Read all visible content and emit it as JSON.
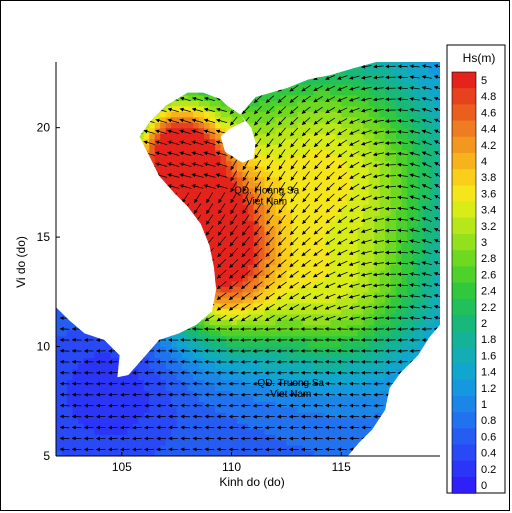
{
  "chart_data": {
    "type": "heatmap",
    "subtype": "filled-contour map with vector arrows",
    "xlabel": "Kinh do (do)",
    "ylabel": "Vi do (do)",
    "xlim": [
      102,
      119.5
    ],
    "ylim": [
      5,
      23
    ],
    "x_ticks": [
      "105",
      "110",
      "115"
    ],
    "y_ticks": [
      "5",
      "10",
      "15",
      "20"
    ],
    "x_tick_values": [
      105,
      110,
      115
    ],
    "y_tick_values": [
      5,
      10,
      15,
      20
    ],
    "grid": false,
    "legend": {
      "title": "Hs(m)",
      "placement": "right",
      "labels": [
        "5",
        "4.8",
        "4.6",
        "4.4",
        "4.2",
        "4",
        "3.8",
        "3.6",
        "3.4",
        "3.2",
        "3",
        "2.8",
        "2.6",
        "2.4",
        "2.2",
        "2",
        "1.8",
        "1.6",
        "1.4",
        "1.2",
        "1",
        "0.8",
        "0.6",
        "0.4",
        "0.2",
        "0"
      ],
      "values": [
        5,
        4.8,
        4.6,
        4.4,
        4.2,
        4,
        3.8,
        3.6,
        3.4,
        3.2,
        3,
        2.8,
        2.6,
        2.4,
        2.2,
        2,
        1.8,
        1.6,
        1.4,
        1.2,
        1,
        0.8,
        0.6,
        0.4,
        0.2,
        0
      ],
      "colors": [
        "#e3231c",
        "#e6421d",
        "#eb5f1e",
        "#ef7c21",
        "#f3981f",
        "#f6b31c",
        "#f9cf19",
        "#f4e61a",
        "#d8ec18",
        "#b7e61a",
        "#93e01c",
        "#6fd921",
        "#4ed12a",
        "#32c83d",
        "#21c05b",
        "#18b87a",
        "#14b398",
        "#12adb5",
        "#10a6cd",
        "#1598e0",
        "#1b86e8",
        "#2172ee",
        "#255df2",
        "#2849f5",
        "#2b35f7",
        "#2f20fa"
      ]
    },
    "annotations": [
      {
        "text": "QD. Hoang Sa",
        "lon": 111.6,
        "lat": 17.0
      },
      {
        "text": "Viet Nam",
        "lon": 111.6,
        "lat": 16.5
      },
      {
        "text": "QD. Truong Sa",
        "lon": 112.7,
        "lat": 8.2
      },
      {
        "text": "Viet Nam",
        "lon": 112.7,
        "lat": 7.7
      }
    ],
    "wave_field": {
      "peak_regions": [
        {
          "name": "north",
          "lon": 107.5,
          "lat": 18.5,
          "hs": 4.9
        },
        {
          "name": "central",
          "lon": 109.3,
          "lat": 14.5,
          "hs": 4.4
        }
      ],
      "background_hs": 0.6,
      "max_hs": 5.0,
      "min_hs": 0
    }
  }
}
